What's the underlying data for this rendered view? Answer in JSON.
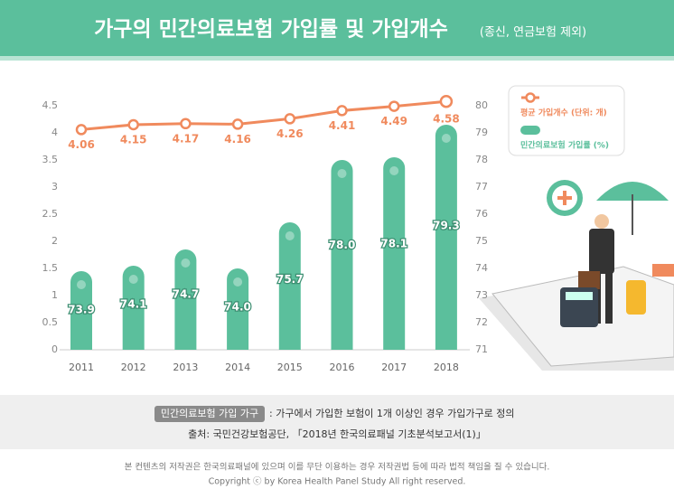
{
  "header": {
    "title": "가구의 민간의료보험 가입률 및 가입개수",
    "subtitle": "(종신, 연금보험 제외)"
  },
  "chart_data": {
    "type": "bar",
    "categories": [
      "2011",
      "2012",
      "2013",
      "2014",
      "2015",
      "2016",
      "2017",
      "2018"
    ],
    "series": [
      {
        "name": "평균 가입개수 (단위: 개)",
        "type": "line",
        "color": "#f08a5d",
        "values": [
          4.06,
          4.15,
          4.17,
          4.16,
          4.26,
          4.41,
          4.49,
          4.58
        ]
      },
      {
        "name": "민간의료보험 가입률 (%)",
        "type": "bar",
        "axis": "y2",
        "color": "#5bbf9c",
        "values": [
          73.9,
          74.1,
          74.7,
          74.0,
          75.7,
          78.0,
          78.1,
          79.3
        ],
        "value_labels": [
          "73.9",
          "74.1",
          "74.7",
          "74.0",
          "75.7",
          "78.0",
          "78.1",
          "79.3"
        ]
      }
    ],
    "ylim": [
      0,
      4.5
    ],
    "yticks": [
      0,
      0.5,
      1,
      1.5,
      2,
      2.5,
      3,
      3.5,
      4,
      4.5
    ],
    "y2lim": [
      71,
      80
    ],
    "y2ticks": [
      71,
      72,
      73,
      74,
      75,
      76,
      77,
      78,
      79,
      80
    ]
  },
  "footer": {
    "badge": "민간의료보험 가입 가구",
    "definition": ": 가구에서 가입한 보험이 1개 이상인 경우 가입가구로 정의",
    "source": "출처: 국민건강보험공단, 「2018년 한국의료패널 기초분석보고서(1)」",
    "notice": "본 컨텐츠의 저작권은 한국의료패널에 있으며 이를 무단 이용하는 경우 저작권법 등에 따라 법적 책임을 질 수 있습니다.",
    "copyright": "Copyright ⓒ by Korea Health Panel Study All right reserved."
  }
}
